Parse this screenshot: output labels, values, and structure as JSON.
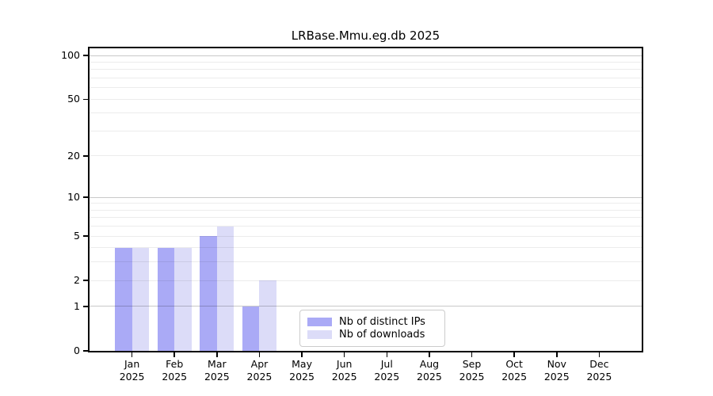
{
  "title": "LRBase.Mmu.eg.db 2025",
  "legend": {
    "items": [
      {
        "label": "Nb of distinct IPs",
        "color": "#aaaaf6"
      },
      {
        "label": "Nb of downloads",
        "color": "#dcdcf8"
      }
    ]
  },
  "chart_data": {
    "type": "bar",
    "title": "LRBase.Mmu.eg.db 2025",
    "categories": [
      "Jan",
      "Feb",
      "Mar",
      "Apr",
      "May",
      "Jun",
      "Jul",
      "Aug",
      "Sep",
      "Oct",
      "Nov",
      "Dec"
    ],
    "category_year": "2025",
    "series": [
      {
        "name": "Nb of distinct IPs",
        "color": "#aaaaf6",
        "values": [
          4,
          4,
          5,
          1,
          0,
          0,
          0,
          0,
          0,
          0,
          0,
          0
        ]
      },
      {
        "name": "Nb of downloads",
        "color": "#dcdcf8",
        "values": [
          4,
          4,
          6,
          2,
          0,
          0,
          0,
          0,
          0,
          0,
          0,
          0
        ]
      }
    ],
    "xlabel": "",
    "ylabel": "",
    "y_scale": "log1p",
    "ylim": [
      0,
      112
    ],
    "y_ticks": [
      0,
      1,
      2,
      5,
      10,
      20,
      50,
      100
    ],
    "y_major_gridlines": [
      1,
      10,
      100
    ],
    "y_minor_gridlines": [
      2,
      3,
      4,
      5,
      6,
      7,
      8,
      9,
      20,
      30,
      40,
      50,
      60,
      70,
      80,
      90
    ],
    "grid": true,
    "legend_position": "lower center"
  },
  "colors": {
    "grid_major": "rgba(0,0,0,0.21)",
    "grid_minor": "rgba(0,0,0,0.075)",
    "spine": "#000000",
    "background": "#ffffff",
    "text": "#000000",
    "legend_border": "#cccccc"
  }
}
